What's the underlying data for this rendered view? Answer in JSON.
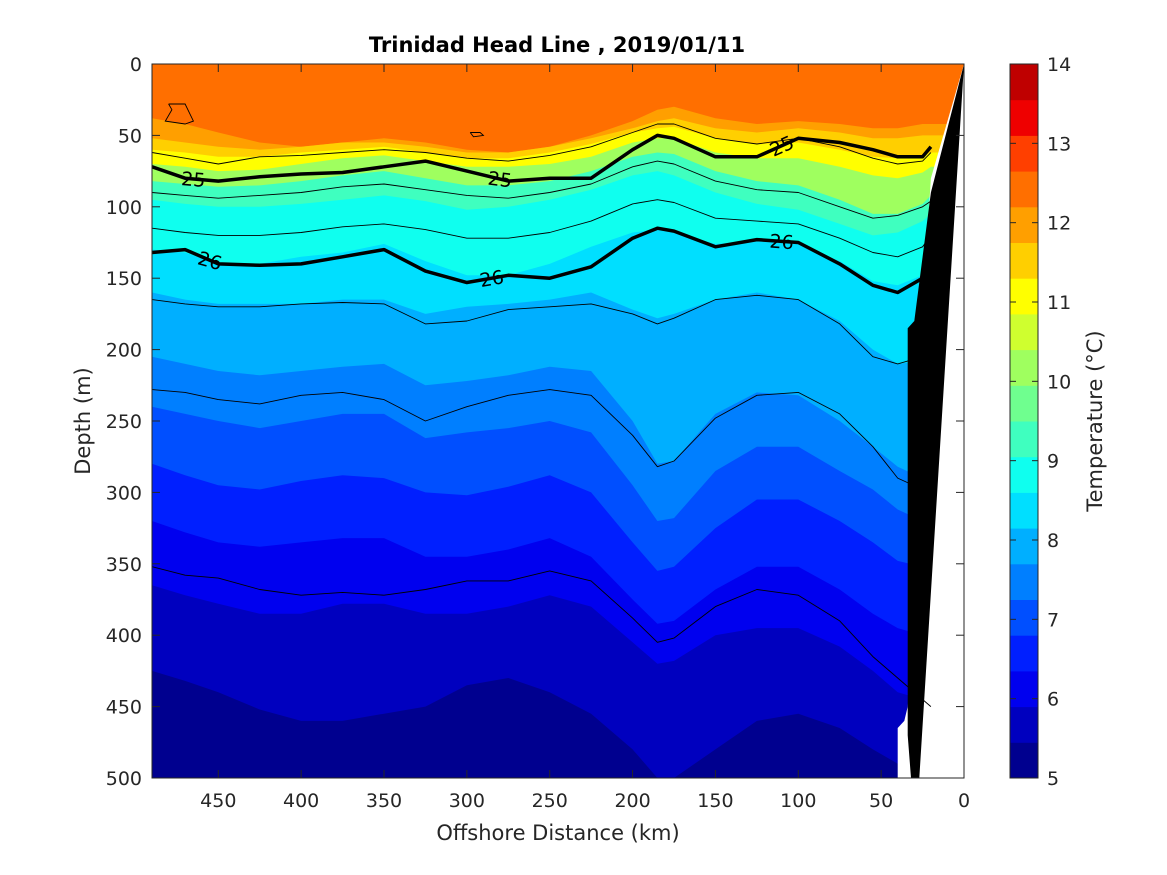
{
  "chart_data": {
    "type": "heatmap",
    "title": "Trinidad Head Line , 2019/01/11",
    "xlabel": "Offshore Distance (km)",
    "ylabel": "Depth (m)",
    "colorbar_label": "Temperature (°C)",
    "xlim": [
      490,
      0
    ],
    "ylim": [
      0,
      500
    ],
    "x_reversed": true,
    "y_reversed": true,
    "x_ticks": [
      450,
      400,
      350,
      300,
      250,
      200,
      150,
      100,
      50,
      0
    ],
    "y_ticks": [
      0,
      50,
      100,
      150,
      200,
      250,
      300,
      350,
      400,
      450,
      500
    ],
    "colorbar": {
      "min": 5,
      "max": 14,
      "step": 0.5,
      "ticks": [
        5,
        6,
        7,
        8,
        9,
        10,
        11,
        12,
        13,
        14
      ],
      "colors": [
        "#00008f",
        "#0000bf",
        "#0000ef",
        "#001fff",
        "#004fff",
        "#007fff",
        "#00afff",
        "#00dfff",
        "#0fffef",
        "#3fffbf",
        "#6fff8f",
        "#9fff5f",
        "#cfff2f",
        "#ffff00",
        "#ffcf00",
        "#ff9f00",
        "#ff6f00",
        "#ff3f00",
        "#ef0000",
        "#bf0000"
      ]
    },
    "profiles_x": [
      490,
      470,
      450,
      425,
      400,
      375,
      350,
      325,
      300,
      275,
      250,
      225,
      200,
      185,
      175,
      150,
      125,
      100,
      75,
      55,
      40,
      25,
      20
    ],
    "isotherms": [
      {
        "t": 13.0,
        "depth": [
          38,
          42,
          48,
          55,
          58,
          55,
          52,
          55,
          60,
          62,
          58,
          50,
          40,
          32,
          30,
          38,
          42,
          40,
          42,
          45,
          45,
          42,
          42
        ]
      },
      {
        "t": 12.5,
        "depth": [
          52,
          55,
          58,
          60,
          58,
          55,
          55,
          58,
          62,
          62,
          58,
          52,
          45,
          40,
          38,
          45,
          48,
          45,
          48,
          52,
          52,
          50,
          50
        ]
      },
      {
        "t": 12.0,
        "depth": [
          60,
          62,
          65,
          65,
          62,
          60,
          58,
          62,
          66,
          66,
          62,
          56,
          48,
          45,
          44,
          52,
          56,
          55,
          60,
          65,
          66,
          64,
          62
        ]
      },
      {
        "t": 11.0,
        "depth": [
          70,
          72,
          75,
          74,
          70,
          66,
          64,
          68,
          72,
          72,
          70,
          65,
          55,
          52,
          52,
          62,
          66,
          66,
          72,
          78,
          80,
          76,
          72
        ]
      },
      {
        "t": 10.0,
        "depth": [
          82,
          84,
          86,
          85,
          82,
          78,
          75,
          80,
          85,
          85,
          82,
          75,
          65,
          62,
          63,
          75,
          82,
          85,
          95,
          105,
          105,
          98,
          92
        ]
      },
      {
        "t": 9.5,
        "depth": [
          95,
          98,
          100,
          100,
          98,
          95,
          92,
          96,
          102,
          100,
          95,
          88,
          78,
          75,
          78,
          90,
          98,
          102,
          112,
          120,
          118,
          110,
          105
        ]
      },
      {
        "t": 9.0,
        "depth": [
          130,
          132,
          140,
          140,
          135,
          132,
          126,
          138,
          148,
          148,
          140,
          128,
          118,
          116,
          118,
          126,
          124,
          126,
          138,
          152,
          155,
          148,
          140
        ]
      },
      {
        "t": 8.5,
        "depth": [
          160,
          165,
          168,
          168,
          168,
          165,
          165,
          175,
          170,
          168,
          165,
          160,
          172,
          178,
          175,
          165,
          160,
          165,
          180,
          200,
          210,
          208,
          205
        ]
      },
      {
        "t": 8.0,
        "depth": [
          205,
          210,
          215,
          218,
          215,
          212,
          210,
          225,
          222,
          218,
          212,
          215,
          250,
          280,
          278,
          245,
          230,
          232,
          250,
          268,
          282,
          290,
          292
        ]
      },
      {
        "t": 7.5,
        "depth": [
          240,
          245,
          250,
          255,
          250,
          245,
          245,
          262,
          258,
          255,
          250,
          258,
          295,
          320,
          318,
          285,
          268,
          268,
          285,
          298,
          312,
          320,
          322
        ]
      },
      {
        "t": 7.0,
        "depth": [
          280,
          288,
          295,
          298,
          292,
          288,
          290,
          300,
          302,
          296,
          288,
          300,
          335,
          355,
          352,
          325,
          305,
          305,
          320,
          335,
          348,
          352,
          355
        ]
      },
      {
        "t": 6.5,
        "depth": [
          320,
          328,
          335,
          338,
          335,
          332,
          332,
          345,
          345,
          340,
          332,
          345,
          375,
          392,
          390,
          368,
          352,
          352,
          368,
          385,
          395,
          400,
          402
        ]
      },
      {
        "t": 6.0,
        "depth": [
          365,
          372,
          378,
          385,
          385,
          378,
          378,
          385,
          385,
          380,
          372,
          380,
          405,
          420,
          418,
          400,
          395,
          395,
          408,
          425,
          440,
          445,
          448
        ]
      },
      {
        "t": 5.5,
        "depth": [
          425,
          432,
          440,
          452,
          460,
          460,
          455,
          450,
          435,
          430,
          440,
          455,
          480,
          500,
          500,
          480,
          460,
          455,
          465,
          480,
          490,
          495,
          500
        ]
      }
    ],
    "density_lines": [
      {
        "label": "25",
        "bold": true,
        "x": [
          490,
          470,
          450,
          425,
          400,
          375,
          350,
          325,
          300,
          275,
          250,
          225,
          200,
          185,
          175,
          150,
          125,
          100,
          75,
          55,
          40,
          25,
          20
        ],
        "depth": [
          72,
          80,
          82,
          79,
          77,
          76,
          72,
          68,
          75,
          82,
          80,
          80,
          60,
          50,
          52,
          65,
          65,
          52,
          55,
          60,
          65,
          65,
          58
        ],
        "labels_at": [
          465,
          280,
          110
        ]
      },
      {
        "label": "26",
        "bold": true,
        "x": [
          490,
          470,
          450,
          425,
          400,
          375,
          350,
          325,
          300,
          275,
          250,
          225,
          200,
          185,
          175,
          150,
          125,
          100,
          75,
          55,
          40,
          25,
          20
        ],
        "depth": [
          132,
          130,
          140,
          141,
          140,
          135,
          130,
          145,
          153,
          148,
          150,
          142,
          122,
          115,
          117,
          128,
          123,
          125,
          140,
          155,
          160,
          150,
          142
        ],
        "labels_at": [
          455,
          285,
          110
        ]
      },
      {
        "label": "",
        "bold": false,
        "x": [
          490,
          470,
          450,
          425,
          400,
          375,
          350,
          325,
          300,
          275,
          250,
          225,
          200,
          185,
          175,
          150,
          125,
          100,
          75,
          55,
          40,
          25,
          20
        ],
        "depth": [
          62,
          66,
          70,
          65,
          64,
          62,
          60,
          62,
          66,
          68,
          64,
          58,
          48,
          42,
          42,
          52,
          56,
          52,
          58,
          66,
          70,
          68,
          62
        ]
      },
      {
        "label": "",
        "bold": false,
        "x": [
          490,
          470,
          450,
          425,
          400,
          375,
          350,
          325,
          300,
          275,
          250,
          225,
          200,
          185,
          175,
          150,
          125,
          100,
          75,
          55,
          40,
          25,
          20
        ],
        "depth": [
          90,
          92,
          94,
          92,
          90,
          86,
          84,
          88,
          92,
          94,
          90,
          84,
          72,
          68,
          70,
          82,
          88,
          90,
          100,
          108,
          106,
          100,
          96
        ]
      },
      {
        "label": "",
        "bold": false,
        "x": [
          490,
          470,
          450,
          425,
          400,
          375,
          350,
          325,
          300,
          275,
          250,
          225,
          200,
          185,
          175,
          150,
          125,
          100,
          75,
          55,
          40,
          25,
          20
        ],
        "depth": [
          115,
          118,
          120,
          120,
          118,
          114,
          112,
          116,
          122,
          122,
          118,
          110,
          98,
          95,
          97,
          108,
          110,
          112,
          122,
          132,
          135,
          128,
          120
        ]
      },
      {
        "label": "",
        "bold": false,
        "x": [
          490,
          470,
          450,
          425,
          400,
          375,
          350,
          325,
          300,
          275,
          250,
          225,
          200,
          185,
          175,
          150,
          125,
          100,
          75,
          55,
          40,
          25,
          20
        ],
        "depth": [
          165,
          168,
          170,
          170,
          168,
          167,
          168,
          182,
          180,
          172,
          170,
          168,
          175,
          182,
          178,
          165,
          162,
          165,
          182,
          205,
          210,
          205,
          200
        ]
      },
      {
        "label": "",
        "bold": false,
        "x": [
          490,
          470,
          450,
          425,
          400,
          375,
          350,
          325,
          300,
          275,
          250,
          225,
          200,
          185,
          175,
          150,
          125,
          100,
          75,
          55,
          40,
          25,
          20
        ],
        "depth": [
          228,
          230,
          235,
          238,
          232,
          230,
          235,
          250,
          240,
          232,
          228,
          232,
          260,
          282,
          278,
          248,
          232,
          230,
          245,
          268,
          290,
          298,
          300
        ]
      },
      {
        "label": "",
        "bold": false,
        "x": [
          490,
          470,
          450,
          425,
          400,
          375,
          350,
          325,
          300,
          275,
          250,
          225,
          200,
          185,
          175,
          150,
          125,
          100,
          75,
          55,
          40,
          25,
          20
        ],
        "depth": [
          352,
          358,
          360,
          368,
          372,
          370,
          372,
          368,
          362,
          362,
          355,
          362,
          388,
          405,
          402,
          380,
          368,
          372,
          390,
          415,
          430,
          445,
          450
        ]
      }
    ],
    "small_contours": [
      {
        "x": [
          480,
          470,
          465,
          470,
          482,
          478,
          480
        ],
        "depth": [
          28,
          28,
          40,
          42,
          40,
          32,
          28
        ]
      },
      {
        "x": [
          298,
          292,
          290,
          296,
          298
        ],
        "depth": [
          48,
          48,
          50,
          51,
          48
        ]
      }
    ],
    "seafloor_polygon": {
      "x": [
        0,
        27,
        32,
        34,
        34,
        30,
        20,
        0
      ],
      "depth": [
        0,
        500,
        500,
        470,
        185,
        180,
        90,
        0
      ]
    },
    "nodata_polygon": {
      "x": [
        0,
        20,
        25,
        30,
        30,
        34,
        36,
        40,
        40,
        20,
        0
      ],
      "depth": [
        0,
        80,
        170,
        180,
        400,
        450,
        460,
        465,
        500,
        500,
        500
      ]
    }
  }
}
